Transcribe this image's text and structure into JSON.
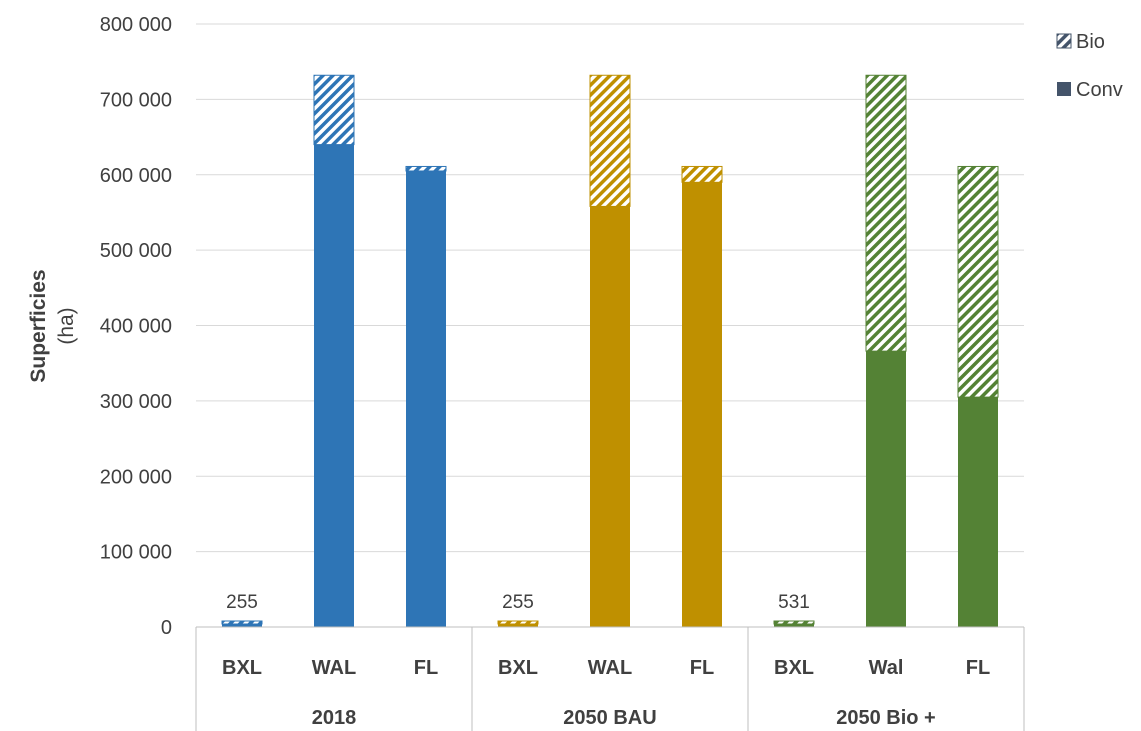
{
  "chart_data": {
    "type": "bar",
    "stacked": true,
    "ylabel": "Superficies",
    "ylabel_unit": "(ha)",
    "ylim": [
      0,
      800000
    ],
    "yticks": [
      0,
      100000,
      200000,
      300000,
      400000,
      500000,
      600000,
      700000,
      800000
    ],
    "ytick_labels": [
      "0",
      "100 000",
      "200 000",
      "300 000",
      "400 000",
      "500 000",
      "600 000",
      "700 000",
      "800 000"
    ],
    "grid": true,
    "legend_position": "top-right",
    "legend": [
      {
        "name": "Bio",
        "pattern": "hatched"
      },
      {
        "name": "Conv",
        "pattern": "solid",
        "color": "#44546a"
      }
    ],
    "groups": [
      {
        "label": "2018",
        "color": "#2e75b6",
        "bars": [
          {
            "label": "BXL",
            "conv": 250,
            "bio": 5,
            "data_label": "255"
          },
          {
            "label": "WAL",
            "conv": 640000,
            "bio": 92000
          },
          {
            "label": "FL",
            "conv": 605000,
            "bio": 6000
          }
        ]
      },
      {
        "label": "2050 BAU",
        "color": "#bf9000",
        "bars": [
          {
            "label": "BXL",
            "conv": 250,
            "bio": 5,
            "data_label": "255"
          },
          {
            "label": "WAL",
            "conv": 558000,
            "bio": 174000
          },
          {
            "label": "FL",
            "conv": 590000,
            "bio": 21000
          }
        ]
      },
      {
        "label": "2050 Bio +",
        "color": "#548235",
        "bars": [
          {
            "label": "BXL",
            "conv": 265,
            "bio": 266,
            "data_label": "531"
          },
          {
            "label": "Wal",
            "conv": 366000,
            "bio": 366000
          },
          {
            "label": "FL",
            "conv": 305000,
            "bio": 306000
          }
        ]
      }
    ]
  }
}
